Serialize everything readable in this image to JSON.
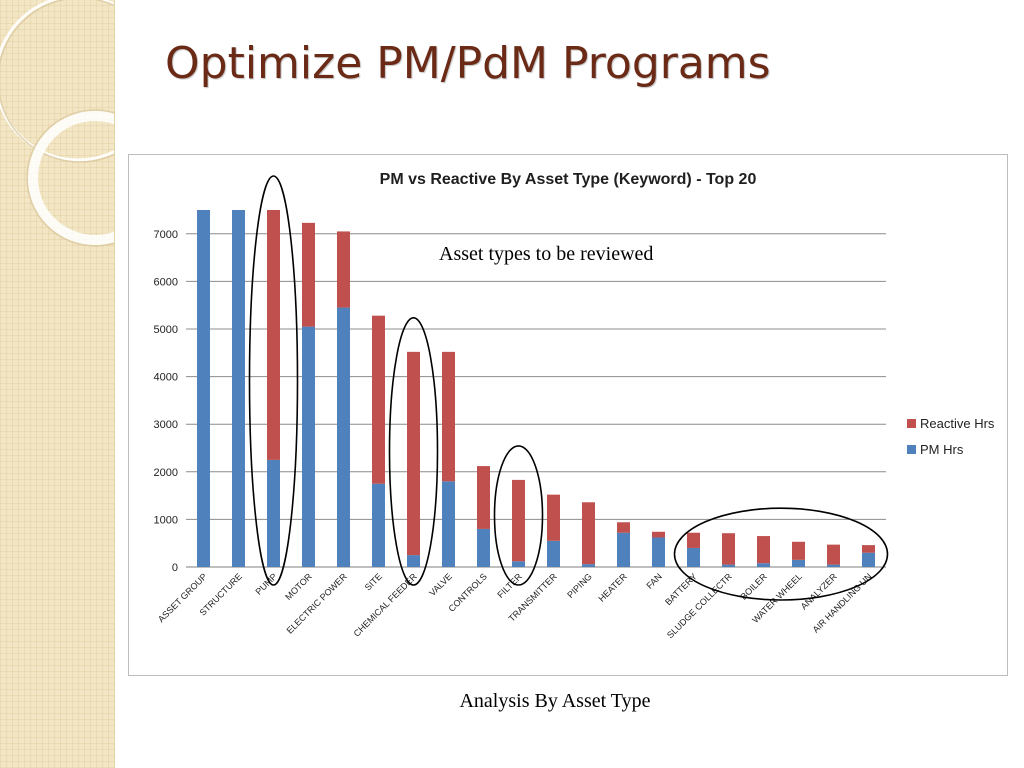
{
  "slide": {
    "title": "Optimize PM/PdM Programs",
    "caption": "Analysis By Asset Type"
  },
  "colors": {
    "pm": "#4f81bd",
    "reactive": "#c0504d",
    "title": "#6b2a16",
    "gridline": "#8c8c8c"
  },
  "chart_data": {
    "type": "bar",
    "stacked": true,
    "title": "PM vs Reactive By Asset Type (Keyword) - Top 20",
    "annotation": "Asset types to be reviewed",
    "categories": [
      "ASSET GROUP",
      "STRUCTURE",
      "PUMP",
      "MOTOR",
      "ELECTRIC POWER",
      "SITE",
      "CHEMICAL FEEDER",
      "VALVE",
      "CONTROLS",
      "FILTER",
      "TRANSMITTER",
      "PIPING",
      "HEATER",
      "FAN",
      "BATTERY",
      "SLUDGE COLLECTR",
      "BOILER",
      "WATER WHEEL",
      "ANALYZER",
      "AIR HANDLING UN"
    ],
    "series": [
      {
        "name": "PM Hrs",
        "color": "#4f81bd",
        "values": [
          7500,
          7500,
          2250,
          5050,
          5450,
          1750,
          250,
          1800,
          800,
          120,
          550,
          60,
          720,
          620,
          400,
          50,
          80,
          150,
          50,
          300
        ]
      },
      {
        "name": "Reactive Hrs",
        "color": "#c0504d",
        "values": [
          0,
          0,
          5250,
          2180,
          1600,
          3530,
          4270,
          2720,
          1320,
          1710,
          970,
          1300,
          220,
          120,
          320,
          660,
          570,
          380,
          420,
          160
        ]
      }
    ],
    "ylim": [
      0,
      7500
    ],
    "yticks": [
      0,
      1000,
      2000,
      3000,
      4000,
      5000,
      6000,
      7000
    ],
    "grid": true,
    "legend_position": "right",
    "highlighted_groups": [
      [
        "PUMP"
      ],
      [
        "CHEMICAL FEEDER"
      ],
      [
        "FILTER"
      ],
      [
        "SLUDGE COLLECTR",
        "BOILER",
        "WATER WHEEL",
        "ANALYZER"
      ]
    ]
  }
}
